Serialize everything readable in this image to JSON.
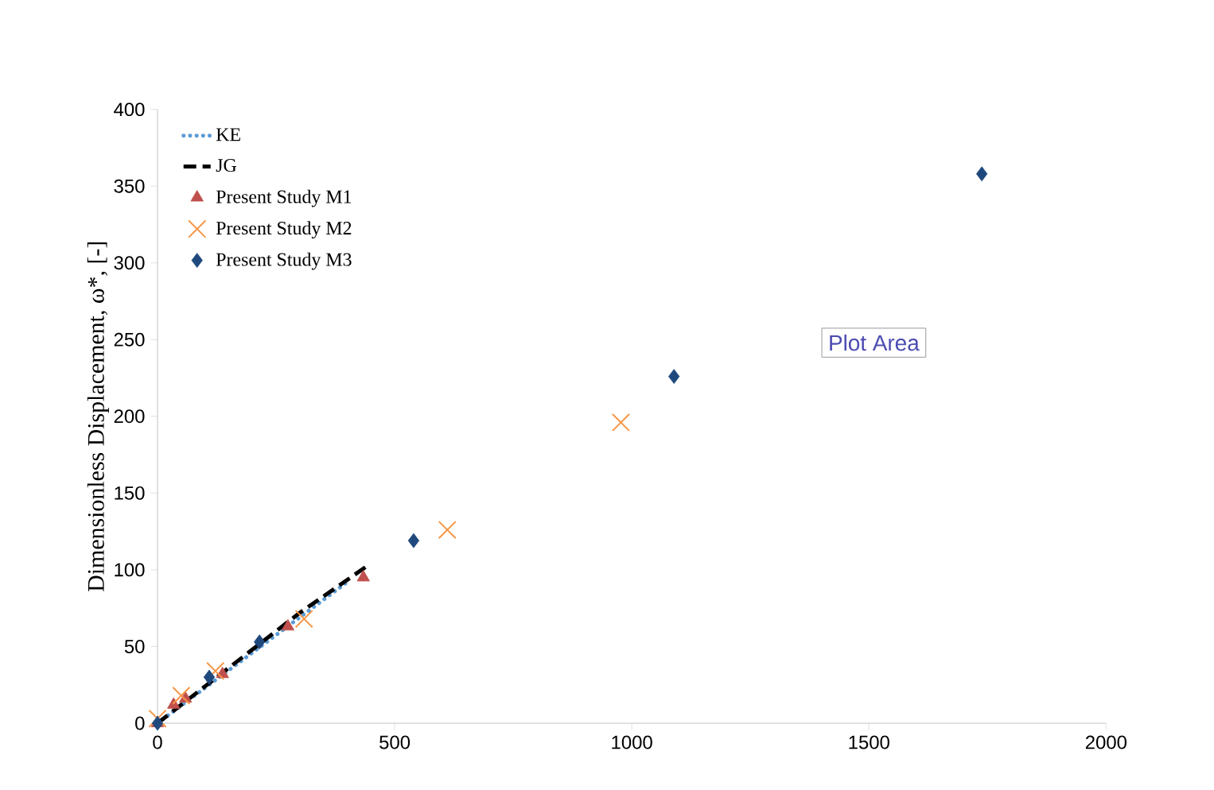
{
  "chart_data": {
    "type": "scatter",
    "ylabel": "Dimensionless Displacement, ω*, [-]",
    "xlim": [
      0,
      2000
    ],
    "ylim": [
      0,
      400
    ],
    "xticks": [
      0,
      500,
      1000,
      1500,
      2000
    ],
    "yticks": [
      0,
      50,
      100,
      150,
      200,
      250,
      300,
      350,
      400
    ],
    "grid": false,
    "legend": "top left",
    "annotations": [
      "Plot Area"
    ],
    "series": [
      {
        "name": "KE",
        "type": "line",
        "line_style": "dotted",
        "marker": "none",
        "color": "#5b9bd5",
        "x": [
          0,
          100,
          200,
          300,
          400
        ],
        "values": [
          0,
          23,
          46,
          69,
          92
        ]
      },
      {
        "name": "JG",
        "type": "line",
        "line_style": "dashed",
        "marker": "none",
        "color": "#000000",
        "x": [
          0,
          100,
          200,
          300,
          440
        ],
        "values": [
          0,
          24,
          48,
          72,
          102
        ]
      },
      {
        "name": "Present Study M1",
        "marker": "triangle",
        "color": "#c0504d",
        "x": [
          0,
          34,
          59,
          137,
          275,
          434
        ],
        "values": [
          0,
          12,
          16,
          32,
          63,
          95
        ]
      },
      {
        "name": "Present Study M2",
        "marker": "cross",
        "color": "#f79646",
        "x": [
          0,
          50,
          122,
          309,
          611,
          977
        ],
        "values": [
          3,
          18,
          34,
          68,
          126,
          196
        ]
      },
      {
        "name": "Present Study M3",
        "marker": "diamond",
        "color": "#1f497d",
        "x": [
          0,
          109,
          215,
          540,
          1089,
          1738
        ],
        "values": [
          0,
          30,
          53,
          119,
          226,
          358
        ]
      }
    ]
  }
}
